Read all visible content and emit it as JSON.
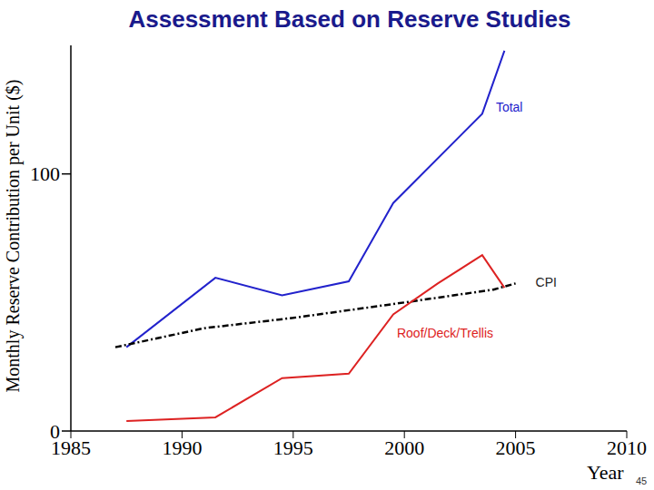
{
  "chart_data": {
    "type": "line",
    "title": "Assessment Based on Reserve Studies",
    "x_label": "Year",
    "y_label": "Monthly Reserve Contribution per Unit ($)",
    "xlim": [
      1985,
      2010
    ],
    "xticks": [
      1985,
      1990,
      1995,
      2000,
      2005,
      2010
    ],
    "ylim": [
      0,
      150
    ],
    "yticks": [
      0,
      100
    ],
    "grid": false,
    "series": [
      {
        "name": "Total",
        "color": "#2222cc",
        "line_style": "solid",
        "x": [
          1987.5,
          1991.5,
          1994.5,
          1997.5,
          1999.5,
          2003.5,
          2004.5
        ],
        "values": [
          32.6,
          59.6,
          52.8,
          58.2,
          88.7,
          123.4,
          147.9
        ]
      },
      {
        "name": "CPI",
        "color": "#000000",
        "line_style": "dashdot",
        "x": [
          1987,
          1991,
          1995,
          2000,
          2004,
          2005
        ],
        "values": [
          32.6,
          40,
          44,
          50,
          55,
          57.4
        ]
      },
      {
        "name": "Roof/Deck/Trellis",
        "color": "#dd2222",
        "line_style": "solid",
        "x": [
          1987.5,
          1991.5,
          1994.5,
          1997.5,
          1999.5,
          2001.5,
          2003.5,
          2004.5
        ],
        "values": [
          3.9,
          5.3,
          20.6,
          22.3,
          45.4,
          57.4,
          68.4,
          55.7
        ]
      }
    ]
  },
  "slide_number": "45"
}
